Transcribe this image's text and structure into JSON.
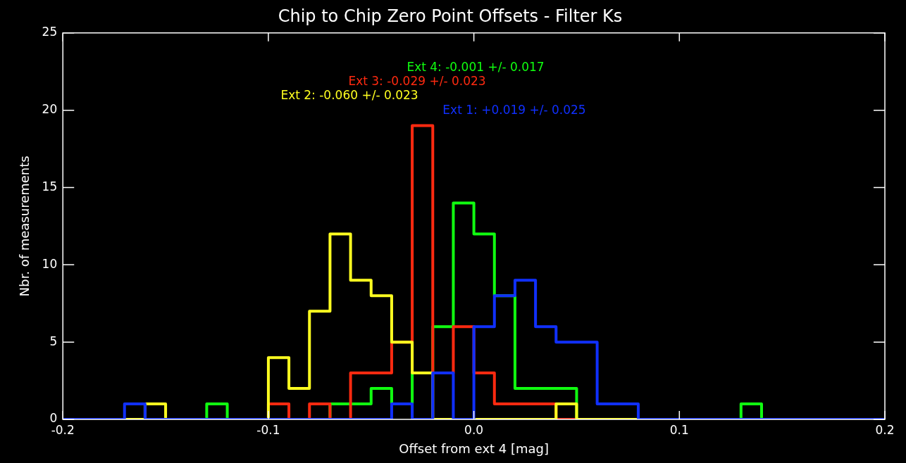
{
  "chart_data": {
    "type": "histogram",
    "title": "Chip to Chip Zero Point Offsets - Filter Ks",
    "xlabel": "Offset from ext 4 [mag]",
    "ylabel": "Nbr. of measurements",
    "bins": [
      -0.2,
      -0.19,
      -0.18,
      -0.17,
      -0.16,
      -0.15,
      -0.14,
      -0.13,
      -0.12,
      -0.11,
      -0.1,
      -0.09,
      -0.08,
      -0.07,
      -0.06,
      -0.05,
      -0.04,
      -0.03,
      -0.02,
      -0.01,
      0,
      0.01,
      0.02,
      0.03,
      0.04,
      0.05,
      0.06,
      0.07,
      0.08,
      0.09,
      0.1,
      0.11,
      0.12,
      0.13,
      0.14,
      0.15,
      0.16,
      0.17,
      0.18,
      0.19,
      0.2
    ],
    "series": [
      {
        "name": "Ext 1: +0.019 +/- 0.025",
        "color": "#1030ff",
        "values": [
          0,
          0,
          0,
          1,
          0,
          0,
          0,
          0,
          0,
          0,
          0,
          0,
          0,
          0,
          0,
          0,
          1,
          0,
          3,
          0,
          6,
          8,
          9,
          6,
          5,
          5,
          1,
          1,
          0,
          0,
          0,
          0,
          0,
          0,
          0,
          0,
          0,
          0,
          0,
          0
        ]
      },
      {
        "name": "Ext 2: -0.060 +/- 0.023",
        "color": "#ffff20",
        "values": [
          0,
          0,
          0,
          0,
          1,
          0,
          0,
          0,
          0,
          0,
          4,
          2,
          7,
          12,
          9,
          8,
          5,
          3,
          0,
          0,
          0,
          0,
          0,
          0,
          1,
          0,
          0,
          0,
          0,
          0,
          0,
          0,
          0,
          0,
          0,
          0,
          0,
          0,
          0,
          0
        ]
      },
      {
        "name": "Ext 3: -0.029 +/- 0.023",
        "color": "#ff2a10",
        "values": [
          0,
          0,
          0,
          0,
          0,
          0,
          0,
          0,
          0,
          0,
          1,
          0,
          1,
          0,
          3,
          3,
          5,
          19,
          3,
          6,
          3,
          1,
          1,
          1,
          0,
          0,
          0,
          0,
          0,
          0,
          0,
          0,
          0,
          0,
          0,
          0,
          0,
          0,
          0,
          0
        ]
      },
      {
        "name": "Ext 4: -0.001 +/- 0.017",
        "color": "#10ff10",
        "values": [
          0,
          0,
          0,
          0,
          0,
          0,
          0,
          1,
          0,
          0,
          0,
          0,
          0,
          1,
          1,
          2,
          1,
          3,
          6,
          14,
          12,
          8,
          2,
          2,
          2,
          0,
          0,
          0,
          0,
          0,
          0,
          0,
          0,
          1,
          0,
          0,
          0,
          0,
          0,
          0
        ]
      }
    ],
    "xlim": [
      -0.2,
      0.2
    ],
    "xticks": [
      -0.2,
      -0.1,
      {
        "value": 0,
        "label": "0.0"
      },
      0.1,
      0.2
    ],
    "ylim": [
      0,
      25
    ],
    "yticks": [
      0,
      5,
      10,
      15,
      20,
      25
    ],
    "legend": false
  }
}
